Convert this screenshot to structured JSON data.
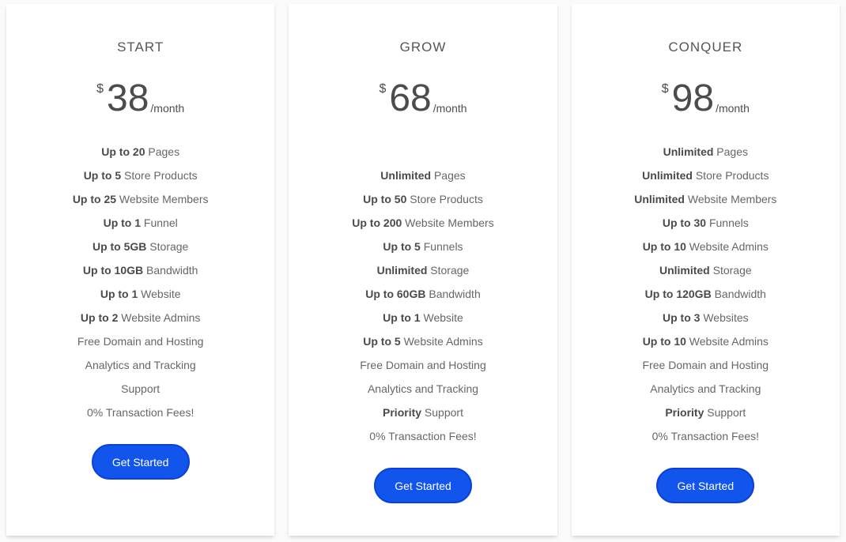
{
  "pricing_table": {
    "accent_color": "#1155ec",
    "accent_border_color": "#0c41d8",
    "cta_text_color": "#ffffff",
    "cards": [
      {
        "title": "START",
        "currency": "$",
        "amount": "38",
        "period": "/month",
        "features": [
          {
            "bold": "Up to 20",
            "rest": " Pages"
          },
          {
            "bold": "Up to 5",
            "rest": " Store Products"
          },
          {
            "bold": "Up to 25",
            "rest": " Website Members"
          },
          {
            "bold": "Up to 1",
            "rest": " Funnel"
          },
          {
            "bold": "Up to 5GB",
            "rest": " Storage"
          },
          {
            "bold": "Up to 10GB",
            "rest": " Bandwidth"
          },
          {
            "bold": "Up to 1",
            "rest": " Website"
          },
          {
            "bold": "Up to 2",
            "rest": " Website Admins"
          },
          {
            "bold": "",
            "rest": "Free Domain and Hosting"
          },
          {
            "bold": "",
            "rest": "Analytics and Tracking"
          },
          {
            "bold": "",
            "rest": "Support"
          },
          {
            "bold": "",
            "rest": "0% Transaction Fees!"
          }
        ],
        "cta": "Get Started"
      },
      {
        "title": "GROW",
        "currency": "$",
        "amount": "68",
        "period": "/month",
        "features": [
          {
            "bold": "",
            "rest": ""
          },
          {
            "bold": "Unlimited",
            "rest": " Pages"
          },
          {
            "bold": "Up to 50",
            "rest": " Store Products"
          },
          {
            "bold": "Up to 200",
            "rest": " Website Members"
          },
          {
            "bold": "Up to 5",
            "rest": " Funnels"
          },
          {
            "bold": "Unlimited",
            "rest": " Storage"
          },
          {
            "bold": "Up to 60GB",
            "rest": " Bandwidth"
          },
          {
            "bold": "Up to 1",
            "rest": " Website"
          },
          {
            "bold": "Up to 5",
            "rest": " Website Admins"
          },
          {
            "bold": "",
            "rest": "Free Domain and Hosting"
          },
          {
            "bold": "",
            "rest": "Analytics and Tracking"
          },
          {
            "bold": "Priority",
            "rest": " Support"
          },
          {
            "bold": "",
            "rest": "0% Transaction Fees!"
          }
        ],
        "cta": "Get Started"
      },
      {
        "title": "CONQUER",
        "currency": "$",
        "amount": "98",
        "period": "/month",
        "features": [
          {
            "bold": "Unlimited",
            "rest": " Pages"
          },
          {
            "bold": "Unlimited",
            "rest": " Store Products"
          },
          {
            "bold": "Unlimited",
            "rest": " Website Members"
          },
          {
            "bold": "Up to 30",
            "rest": " Funnels"
          },
          {
            "bold": "Up to 10",
            "rest": " Website Admins"
          },
          {
            "bold": "Unlimited",
            "rest": " Storage"
          },
          {
            "bold": "Up to 120GB",
            "rest": " Bandwidth"
          },
          {
            "bold": "Up to 3",
            "rest": " Websites"
          },
          {
            "bold": "Up to 10",
            "rest": " Website Admins"
          },
          {
            "bold": "",
            "rest": "Free Domain and Hosting"
          },
          {
            "bold": "",
            "rest": "Analytics and Tracking"
          },
          {
            "bold": "Priority",
            "rest": " Support"
          },
          {
            "bold": "",
            "rest": "0% Transaction Fees!"
          }
        ],
        "cta": "Get Started"
      }
    ]
  }
}
